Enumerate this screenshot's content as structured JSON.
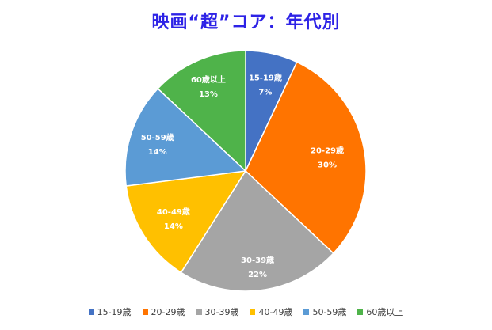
{
  "chart_data": {
    "type": "pie",
    "title": "映画“超”コア：年代別",
    "categories": [
      "15-19歳",
      "20-29歳",
      "30-39歳",
      "40-49歳",
      "50-59歳",
      "60歳以上"
    ],
    "values": [
      7,
      30,
      22,
      14,
      14,
      13
    ],
    "value_labels": [
      "7%",
      "30%",
      "22%",
      "14%",
      "14%",
      "13%"
    ],
    "colors": [
      "#4472c4",
      "#ff7400",
      "#a5a5a5",
      "#ffc000",
      "#5b9bd5",
      "#4fb34a"
    ],
    "start_angle": "12 o'clock",
    "direction": "clockwise",
    "legend_position": "bottom"
  }
}
